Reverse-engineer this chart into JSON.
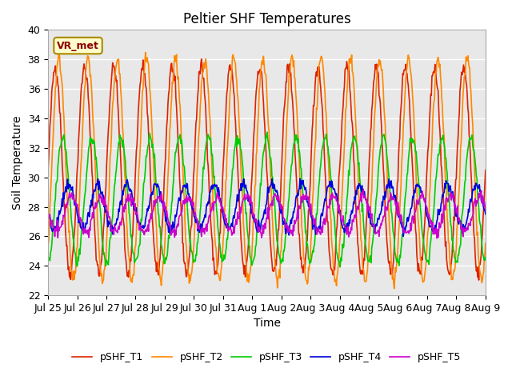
{
  "title": "Peltier SHF Temperatures",
  "xlabel": "Time",
  "ylabel": "Soil Temperature",
  "ylim": [
    22,
    40
  ],
  "annotation": "VR_met",
  "bg_color": "#e8e8e8",
  "legend": [
    "pSHF_T1",
    "pSHF_T2",
    "pSHF_T3",
    "pSHF_T4",
    "pSHF_T5"
  ],
  "colors": [
    "#dd2200",
    "#ff8800",
    "#00cc00",
    "#0000dd",
    "#cc00cc"
  ],
  "xtick_labels": [
    "Jul 25",
    "Jul 26",
    "Jul 27",
    "Jul 28",
    "Jul 29",
    "Jul 30",
    "Jul 31",
    "Aug 1",
    "Aug 2",
    "Aug 3",
    "Aug 4",
    "Aug 5",
    "Aug 6",
    "Aug 7",
    "Aug 8",
    "Aug 9"
  ],
  "n_days": 15,
  "pts_per_day": 48,
  "T1_mean": 30.5,
  "T1_amp": 7.0,
  "T1_phase": 0.0,
  "T2_mean": 30.5,
  "T2_amp": 7.5,
  "T2_phase": 0.12,
  "T3_mean": 28.5,
  "T3_amp": 4.2,
  "T3_phase": 0.25,
  "T4_mean": 28.0,
  "T4_amp": 1.5,
  "T4_phase": 0.45,
  "T5_mean": 27.5,
  "T5_amp": 1.2,
  "T5_phase": 0.55
}
